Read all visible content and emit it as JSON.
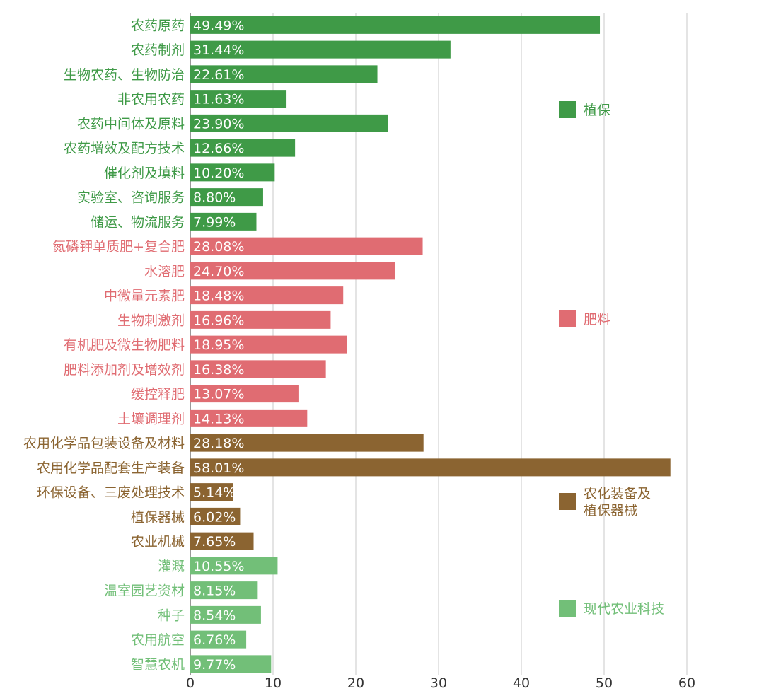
{
  "chart_data": {
    "type": "bar",
    "orientation": "horizontal",
    "title": "",
    "xlabel": "",
    "ylabel": "",
    "xlim": [
      0,
      60
    ],
    "xticks": [
      0,
      10,
      20,
      30,
      40,
      50,
      60
    ],
    "grid": "vertical",
    "legend_position": "right",
    "value_suffix": "%",
    "groups": [
      {
        "name": "植保",
        "color": "#3f9a47"
      },
      {
        "name": "肥料",
        "color": "#e06c72"
      },
      {
        "name": "农化装备及\n植保器械",
        "color": "#8b6431"
      },
      {
        "name": "现代农业科技",
        "color": "#72bf78"
      }
    ],
    "categories": [
      {
        "label": "农药原药",
        "value": 49.49,
        "display": "49.49%",
        "group": 0
      },
      {
        "label": "农药制剂",
        "value": 31.44,
        "display": "31.44%",
        "group": 0
      },
      {
        "label": "生物农药、生物防治",
        "value": 22.61,
        "display": "22.61%",
        "group": 0
      },
      {
        "label": "非农用农药",
        "value": 11.63,
        "display": "11.63%",
        "group": 0
      },
      {
        "label": "农药中间体及原料",
        "value": 23.9,
        "display": "23.90%",
        "group": 0
      },
      {
        "label": "农药增效及配方技术",
        "value": 12.66,
        "display": "12.66%",
        "group": 0
      },
      {
        "label": "催化剂及填料",
        "value": 10.2,
        "display": "10.20%",
        "group": 0
      },
      {
        "label": "实验室、咨询服务",
        "value": 8.8,
        "display": "8.80%",
        "group": 0
      },
      {
        "label": "储运、物流服务",
        "value": 7.99,
        "display": "7.99%",
        "group": 0
      },
      {
        "label": "氮磷钾单质肥+复合肥",
        "value": 28.08,
        "display": "28.08%",
        "group": 1
      },
      {
        "label": "水溶肥",
        "value": 24.7,
        "display": "24.70%",
        "group": 1
      },
      {
        "label": "中微量元素肥",
        "value": 18.48,
        "display": "18.48%",
        "group": 1
      },
      {
        "label": "生物刺激剂",
        "value": 16.96,
        "display": "16.96%",
        "group": 1
      },
      {
        "label": "有机肥及微生物肥料",
        "value": 18.95,
        "display": "18.95%",
        "group": 1
      },
      {
        "label": "肥料添加剂及增效剂",
        "value": 16.38,
        "display": "16.38%",
        "group": 1
      },
      {
        "label": "缓控释肥",
        "value": 13.07,
        "display": "13.07%",
        "group": 1
      },
      {
        "label": "土壤调理剂",
        "value": 14.13,
        "display": "14.13%",
        "group": 1
      },
      {
        "label": "农用化学品包装设备及材料",
        "value": 28.18,
        "display": "28.18%",
        "group": 2
      },
      {
        "label": "农用化学品配套生产装备",
        "value": 58.01,
        "display": "58.01%",
        "group": 2
      },
      {
        "label": "环保设备、三废处理技术",
        "value": 5.14,
        "display": "5.14%",
        "group": 2
      },
      {
        "label": "植保器械",
        "value": 6.02,
        "display": "6.02%",
        "group": 2
      },
      {
        "label": "农业机械",
        "value": 7.65,
        "display": "7.65%",
        "group": 2
      },
      {
        "label": "灌溉",
        "value": 10.55,
        "display": "10.55%",
        "group": 3
      },
      {
        "label": "温室园艺资材",
        "value": 8.15,
        "display": "8.15%",
        "group": 3
      },
      {
        "label": "种子",
        "value": 8.54,
        "display": "8.54%",
        "group": 3
      },
      {
        "label": "农用航空",
        "value": 6.76,
        "display": "6.76%",
        "group": 3
      },
      {
        "label": "智慧农机",
        "value": 9.77,
        "display": "9.77%",
        "group": 3
      }
    ]
  }
}
